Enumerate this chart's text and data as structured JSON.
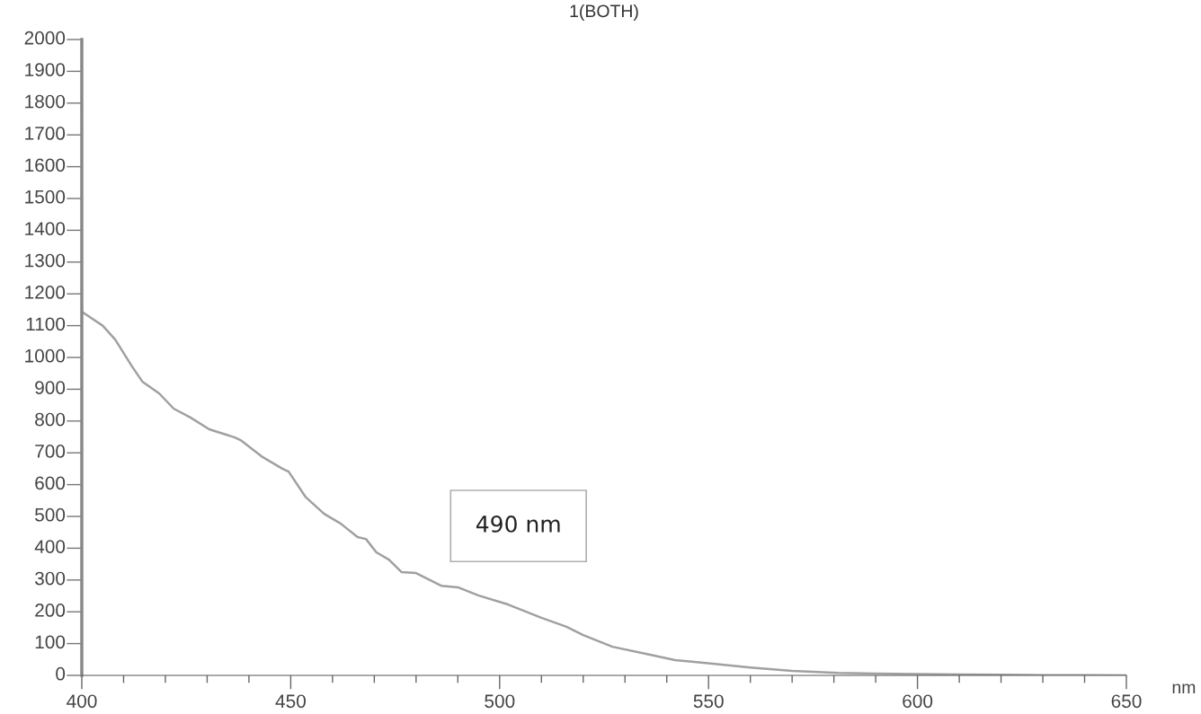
{
  "chart_data": {
    "type": "line",
    "title": "1(BOTH)",
    "xlabel": "nm",
    "x": [
      400,
      405,
      408,
      412,
      414.5,
      418.5,
      422,
      426,
      430.5,
      436.5,
      438,
      443,
      448,
      449.5,
      453.5,
      458,
      462,
      466,
      468,
      470.5,
      473.5,
      476.5,
      480,
      486,
      490,
      495,
      502,
      510,
      516,
      520,
      527,
      535,
      542,
      551,
      560,
      570,
      581,
      590,
      600,
      610,
      620,
      630,
      640,
      650
    ],
    "series": [
      {
        "color": "#a0a0a0",
        "values": [
          1144,
          1100,
          1056,
          972,
          924,
          887,
          839,
          811,
          774,
          749,
          740,
          689,
          650,
          641,
          562,
          508,
          477,
          435,
          429,
          387,
          364,
          325,
          322,
          282,
          277,
          251,
          223,
          181,
          153,
          127,
          90,
          68,
          48,
          37,
          25,
          14,
          8,
          6,
          4,
          3,
          2,
          1,
          1,
          0
        ]
      }
    ],
    "xlim": [
      400,
      650
    ],
    "xticks": [
      400,
      450,
      500,
      550,
      600,
      650
    ],
    "ylim": [
      0,
      2000
    ],
    "yticks": [
      0,
      100,
      200,
      300,
      400,
      500,
      600,
      700,
      800,
      900,
      1000,
      1100,
      1200,
      1300,
      1400,
      1500,
      1600,
      1700,
      1800,
      1900,
      2000
    ],
    "grid": false,
    "line_style": "solid",
    "annotations": [
      "490 nm"
    ]
  }
}
